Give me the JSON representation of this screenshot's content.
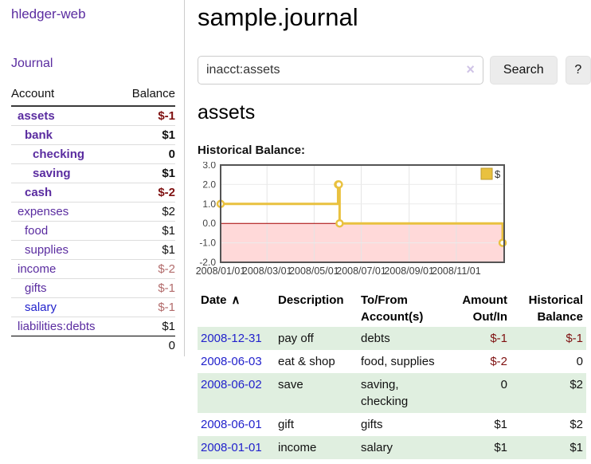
{
  "colors": {
    "link_purple": "#5a2ca0",
    "link_blue": "#2222cc",
    "negative_dark_red": "#7f1111",
    "negative_muted_rose": "#b26b6b",
    "row_green": "#e0efe0",
    "series_gold": "#e9c13f",
    "negative_region_pink": "#ffd9d9",
    "zero_line_red": "#a40000"
  },
  "app": {
    "brand": "hledger-web",
    "nav_journal": "Journal"
  },
  "sidebar": {
    "header": {
      "account": "Account",
      "balance": "Balance"
    },
    "accounts": [
      {
        "name": "assets",
        "balance": "$-1",
        "level": 1,
        "bold": true,
        "negative": true
      },
      {
        "name": "bank",
        "balance": "$1",
        "level": 2,
        "bold": true,
        "negative": false
      },
      {
        "name": "checking",
        "balance": "0",
        "level": 3,
        "bold": true,
        "negative": false
      },
      {
        "name": "saving",
        "balance": "$1",
        "level": 3,
        "bold": true,
        "negative": false
      },
      {
        "name": "cash",
        "balance": "$-2",
        "level": 2,
        "bold": true,
        "negative": true
      },
      {
        "name": "expenses",
        "balance": "$2",
        "level": 1,
        "bold": false,
        "negative": false
      },
      {
        "name": "food",
        "balance": "$1",
        "level": 2,
        "bold": false,
        "negative": false
      },
      {
        "name": "supplies",
        "balance": "$1",
        "level": 2,
        "bold": false,
        "negative": false
      },
      {
        "name": "income",
        "balance": "$-2",
        "level": 1,
        "bold": false,
        "negative": true
      },
      {
        "name": "gifts",
        "balance": "$-1",
        "level": 2,
        "bold": false,
        "negative": true
      },
      {
        "name": "salary",
        "balance": "$-1",
        "level": 2,
        "bold": false,
        "negative": true
      },
      {
        "name": "liabilities:debts",
        "balance": "$1",
        "level": 1,
        "bold": false,
        "negative": false
      }
    ],
    "total": "0"
  },
  "main": {
    "title": "sample.journal",
    "search": {
      "value": "inacct:assets",
      "clear_icon": "×",
      "search_button": "Search",
      "help_button": "?"
    },
    "account_heading": "assets",
    "chart_label": "Historical Balance:",
    "register": {
      "sort_icon": "∧",
      "columns": [
        "Date",
        "Description",
        "To/From Account(s)",
        "Amount Out/In",
        "Historical Balance"
      ],
      "rows": [
        {
          "date": "2008-12-31",
          "description": "pay off",
          "accounts": "debts",
          "amount": "$-1",
          "balance": "$-1"
        },
        {
          "date": "2008-06-03",
          "description": "eat & shop",
          "accounts": "food, supplies",
          "amount": "$-2",
          "balance": "0"
        },
        {
          "date": "2008-06-02",
          "description": "save",
          "accounts": "saving, checking",
          "amount": "0",
          "balance": "$2"
        },
        {
          "date": "2008-06-01",
          "description": "gift",
          "accounts": "gifts",
          "amount": "$1",
          "balance": "$2"
        },
        {
          "date": "2008-01-01",
          "description": "income",
          "accounts": "salary",
          "amount": "$1",
          "balance": "$1"
        }
      ]
    }
  },
  "chart_data": {
    "type": "line",
    "step": true,
    "title": "Historical Balance:",
    "legend": [
      "$"
    ],
    "legend_position": "top-right",
    "grid": true,
    "points": [
      {
        "date": "2008-01-01",
        "value": 1
      },
      {
        "date": "2008-06-01",
        "value": 2
      },
      {
        "date": "2008-06-02",
        "value": 2
      },
      {
        "date": "2008-06-03",
        "value": 0
      },
      {
        "date": "2008-12-31",
        "value": -1
      }
    ],
    "ylim": [
      -2,
      3
    ],
    "y_ticks": [
      3.0,
      2.0,
      1.0,
      0.0,
      -1.0,
      -2.0
    ],
    "x_range": [
      "2008-01-01",
      "2009-01-02"
    ],
    "x_ticks": [
      {
        "date": "2008-01-01",
        "label": "2008/01/01"
      },
      {
        "date": "2008-03-01",
        "label": "2008/03/01"
      },
      {
        "date": "2008-05-01",
        "label": "2008/05/01"
      },
      {
        "date": "2008-07-01",
        "label": "2008/07/01"
      },
      {
        "date": "2008-09-01",
        "label": "2008/09/01"
      },
      {
        "date": "2008-11-01",
        "label": "2008/11/01"
      }
    ],
    "colors": {
      "series": "#e9c13f",
      "negative_region": "#ffd9d9",
      "zero_line": "#a40000"
    }
  }
}
